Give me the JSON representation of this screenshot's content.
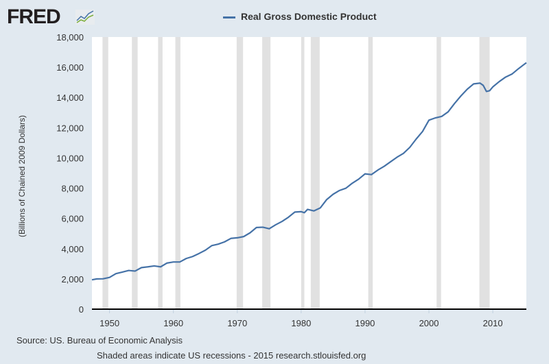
{
  "logo": "FRED",
  "chart_data": {
    "type": "line",
    "title": "",
    "legend": [
      "Real Gross Domestic Product"
    ],
    "legend_placement": "top-center",
    "ylabel": "(Billions of Chained 2009 Dollars)",
    "xlabel": "",
    "xlim": [
      1947.25,
      2015.25
    ],
    "ylim": [
      0,
      18000
    ],
    "yticks": [
      0,
      2000,
      4000,
      6000,
      8000,
      10000,
      12000,
      14000,
      16000,
      18000
    ],
    "ytick_labels": [
      "0",
      "2,000",
      "4,000",
      "6,000",
      "8,000",
      "10,000",
      "12,000",
      "14,000",
      "16,000",
      "18,000"
    ],
    "xticks": [
      1950,
      1960,
      1970,
      1980,
      1990,
      2000,
      2010
    ],
    "xtick_labels": [
      "1950",
      "1960",
      "1970",
      "1980",
      "1990",
      "2000",
      "2010"
    ],
    "grid": false,
    "series": [
      {
        "name": "Real Gross Domestic Product",
        "color": "#4572a7",
        "x": [
          1947.25,
          1948,
          1949,
          1950,
          1951,
          1952,
          1953,
          1954,
          1955,
          1956,
          1957,
          1958,
          1959,
          1960,
          1961,
          1962,
          1963,
          1964,
          1965,
          1966,
          1967,
          1968,
          1969,
          1970,
          1971,
          1972,
          1973,
          1974,
          1975,
          1976,
          1977,
          1978,
          1979,
          1980,
          1980.5,
          1981,
          1982,
          1983,
          1984,
          1985,
          1986,
          1987,
          1988,
          1989,
          1990,
          1991,
          1992,
          1993,
          1994,
          1995,
          1996,
          1997,
          1998,
          1999,
          2000,
          2001,
          2002,
          2003,
          2004,
          2005,
          2006,
          2007,
          2008,
          2008.5,
          2009,
          2009.5,
          2010,
          2011,
          2012,
          2013,
          2014,
          2015.25
        ],
        "values": [
          1940,
          2000,
          2010,
          2100,
          2350,
          2450,
          2560,
          2520,
          2750,
          2800,
          2860,
          2800,
          3050,
          3120,
          3120,
          3350,
          3480,
          3680,
          3900,
          4200,
          4300,
          4450,
          4680,
          4720,
          4800,
          5050,
          5400,
          5420,
          5320,
          5580,
          5800,
          6080,
          6420,
          6450,
          6380,
          6600,
          6500,
          6700,
          7250,
          7600,
          7850,
          8000,
          8330,
          8600,
          8950,
          8900,
          9200,
          9450,
          9750,
          10050,
          10300,
          10700,
          11250,
          11750,
          12500,
          12650,
          12750,
          13050,
          13600,
          14100,
          14550,
          14900,
          14950,
          14800,
          14400,
          14450,
          14700,
          15050,
          15350,
          15550,
          15900,
          16300
        ]
      }
    ],
    "recessions": [
      [
        1948.9,
        1949.8
      ],
      [
        1953.5,
        1954.4
      ],
      [
        1957.6,
        1958.3
      ],
      [
        1960.3,
        1961.1
      ],
      [
        1969.9,
        1970.9
      ],
      [
        1973.9,
        1975.2
      ],
      [
        1980.0,
        1980.5
      ],
      [
        1981.5,
        1982.9
      ],
      [
        1990.5,
        1991.2
      ],
      [
        2001.2,
        2001.9
      ],
      [
        2007.9,
        2009.5
      ]
    ]
  },
  "footer": {
    "source": "Source: US. Bureau of Economic Analysis",
    "note": "Shaded areas indicate US recessions - 2015 research.stlouisfed.org"
  }
}
